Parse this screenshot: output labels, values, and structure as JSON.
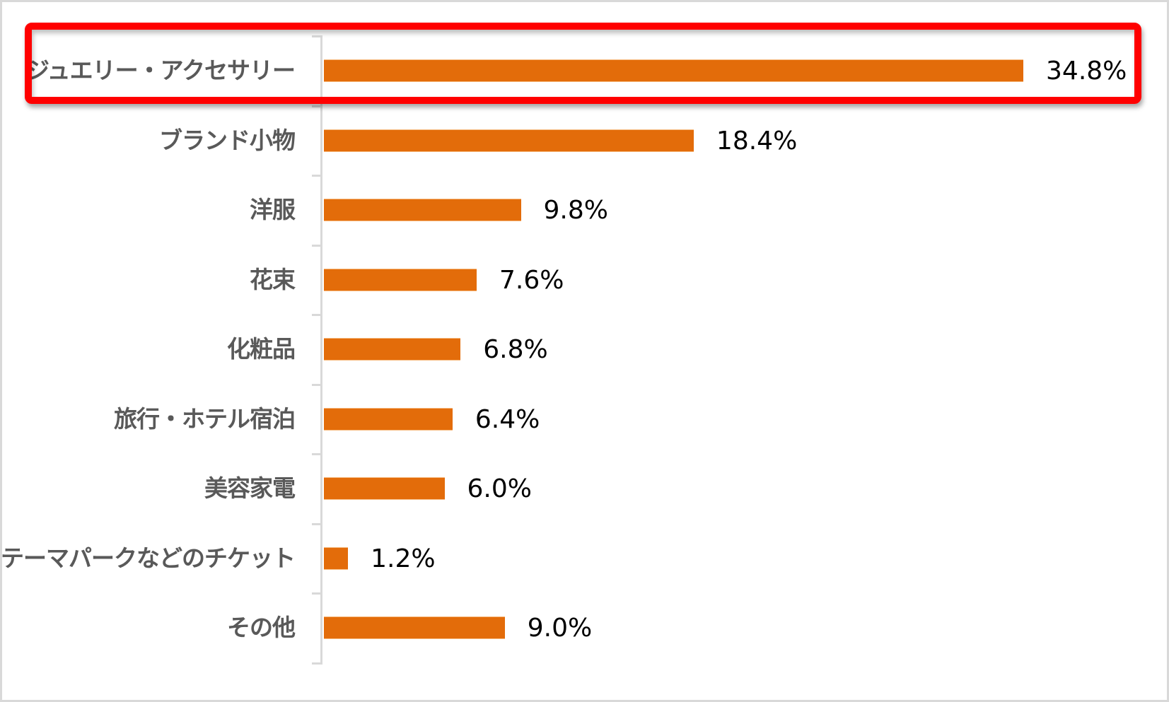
{
  "chart_data": {
    "type": "bar",
    "orientation": "horizontal",
    "title": "",
    "xlabel": "",
    "ylabel": "",
    "grid": false,
    "legend": null,
    "xlim": [
      0,
      40
    ],
    "bar_color": "#e36c0a",
    "highlight_color": "#ff0000",
    "highlighted_category": "ジュエリー・アクセサリー",
    "categories": [
      "ジュエリー・アクセサリー",
      "ブランド小物",
      "洋服",
      "花束",
      "化粧品",
      "旅行・ホテル宿泊",
      "美容家電",
      "テーマパークなどのチケット",
      "その他"
    ],
    "values": [
      34.8,
      18.4,
      9.8,
      7.6,
      6.8,
      6.4,
      6.0,
      1.2,
      9.0
    ],
    "value_labels": [
      "34.8%",
      "18.4%",
      "9.8%",
      "7.6%",
      "6.8%",
      "6.4%",
      "6.0%",
      "1.2%",
      "9.0%"
    ],
    "unit": "%"
  }
}
